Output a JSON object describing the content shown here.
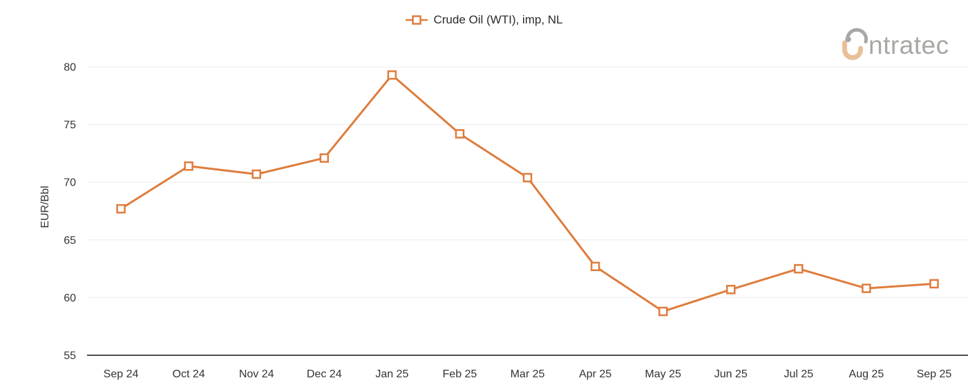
{
  "legend": {
    "label": "Crude Oil (WTI), imp, NL"
  },
  "logo": {
    "visible_text": "ntratec",
    "brand_name": "intratec",
    "gray": "#a9a7a4",
    "tan": "#e9c096"
  },
  "chart_data": {
    "type": "line",
    "title": "",
    "categories": [
      "Sep 24",
      "Oct 24",
      "Nov 24",
      "Dec 24",
      "Jan 25",
      "Feb 25",
      "Mar 25",
      "Apr 25",
      "May 25",
      "Jun 25",
      "Jul 25",
      "Aug 25",
      "Sep 25"
    ],
    "series": [
      {
        "name": "Crude Oil (WTI), imp, NL",
        "values": [
          67.7,
          71.4,
          70.7,
          72.1,
          79.3,
          74.2,
          70.4,
          62.7,
          58.8,
          60.7,
          62.5,
          60.8,
          61.2
        ]
      }
    ],
    "xlabel": "",
    "ylabel": "EUR/Bbl",
    "ylim": [
      55,
      80
    ],
    "yticks": [
      55,
      60,
      65,
      70,
      75,
      80
    ],
    "grid": "horizontal-light",
    "legend_position": "top-center",
    "marker": "open-square",
    "colors": {
      "series": "#de7c3c",
      "marker_fill": "#ffffff",
      "grid": "#ececec",
      "axis_line": "#4d4d4d",
      "tick_text": "#333333",
      "legend_text": "#2b2b2b"
    }
  }
}
